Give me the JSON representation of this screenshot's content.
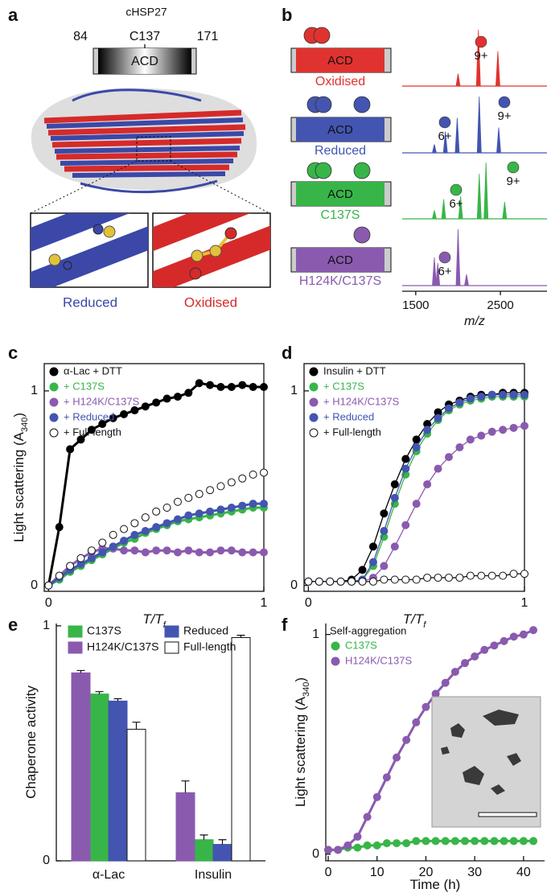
{
  "panel_labels": [
    "a",
    "b",
    "c",
    "d",
    "e",
    "f"
  ],
  "panel_a": {
    "title": "cHSP27",
    "ticks": [
      "84",
      "C137",
      "171"
    ],
    "domain": "ACD",
    "insets": [
      "Reduced",
      "Oxidised"
    ]
  },
  "chart_data": [
    {
      "type": "spectrum",
      "xlabel": "m/z",
      "xlim": [
        1340,
        3050
      ],
      "xticks": [
        1500,
        2500
      ],
      "series": [
        {
          "name": "Oxidised",
          "color": "#e0332f",
          "domain": "ACD",
          "charges": [
            "9+"
          ],
          "x": [
            2000,
            2240,
            2470
          ],
          "values": [
            0.22,
            1.0,
            0.62
          ]
        },
        {
          "name": "Reduced",
          "color": "#4355b0",
          "domain": "ACD",
          "charges": [
            "6+",
            "9+"
          ],
          "x": [
            1720,
            1850,
            1990,
            2250,
            2480
          ],
          "values": [
            0.15,
            0.38,
            0.62,
            1.0,
            0.45
          ]
        },
        {
          "name": "C137S",
          "color": "#38b549",
          "domain": "ACD",
          "charges": [
            "6+",
            "9+"
          ],
          "x": [
            1720,
            1830,
            2030,
            2250,
            2330,
            2550
          ],
          "values": [
            0.15,
            0.35,
            0.4,
            0.8,
            1.0,
            0.3
          ]
        },
        {
          "name": "H124K/C137S",
          "color": "#8a5aaf",
          "domain": "ACD",
          "charges": [
            "6+"
          ],
          "x": [
            1720,
            1760,
            2000,
            2100
          ],
          "values": [
            0.5,
            0.4,
            1.0,
            0.2
          ]
        }
      ]
    },
    {
      "type": "scatter",
      "ylabel": {
        "text": "Light scattering (A",
        "sub": "340",
        "end": ")"
      },
      "xlabel": {
        "text": "T/T",
        "sub": "f"
      },
      "xlim": [
        -0.02,
        1.0
      ],
      "ylim": [
        -0.03,
        1.14
      ],
      "xticks": [
        0,
        1
      ],
      "yticks": [
        0,
        1
      ],
      "x": [
        0,
        0.05,
        0.1,
        0.15,
        0.2,
        0.25,
        0.3,
        0.35,
        0.4,
        0.45,
        0.5,
        0.55,
        0.6,
        0.65,
        0.7,
        0.75,
        0.8,
        0.85,
        0.9,
        0.95,
        1.0
      ],
      "series": [
        {
          "name": "α-Lac + DTT",
          "color": "#000000",
          "values": [
            0,
            0.3,
            0.7,
            0.75,
            0.8,
            0.83,
            0.86,
            0.88,
            0.9,
            0.92,
            0.94,
            0.96,
            0.97,
            0.99,
            1.04,
            1.03,
            1.02,
            1.02,
            1.03,
            1.02,
            1.02
          ]
        },
        {
          "name": "+ C137S",
          "color": "#38b549",
          "values": [
            0,
            0.03,
            0.07,
            0.1,
            0.13,
            0.16,
            0.19,
            0.22,
            0.24,
            0.27,
            0.29,
            0.31,
            0.33,
            0.34,
            0.35,
            0.36,
            0.37,
            0.38,
            0.39,
            0.4,
            0.4
          ]
        },
        {
          "name": "+ H124K/C137S",
          "color": "#8a5aaf",
          "values": [
            0,
            0.05,
            0.1,
            0.14,
            0.17,
            0.19,
            0.19,
            0.18,
            0.18,
            0.17,
            0.18,
            0.18,
            0.17,
            0.18,
            0.17,
            0.17,
            0.18,
            0.18,
            0.17,
            0.17,
            0.17
          ]
        },
        {
          "name": "+ Reduced",
          "color": "#4355b0",
          "values": [
            0,
            0.04,
            0.08,
            0.11,
            0.14,
            0.17,
            0.2,
            0.23,
            0.26,
            0.28,
            0.3,
            0.32,
            0.34,
            0.36,
            0.37,
            0.38,
            0.39,
            0.4,
            0.41,
            0.42,
            0.42
          ]
        },
        {
          "name": "+ Full-length",
          "color": "#ffffff",
          "values": [
            0,
            0.05,
            0.1,
            0.14,
            0.18,
            0.22,
            0.26,
            0.29,
            0.32,
            0.35,
            0.38,
            0.4,
            0.43,
            0.45,
            0.47,
            0.49,
            0.51,
            0.53,
            0.55,
            0.57,
            0.58
          ]
        }
      ]
    },
    {
      "type": "line",
      "xlabel": {
        "text": "T/T",
        "sub": "f"
      },
      "xlim": [
        -0.02,
        1.0
      ],
      "ylim": [
        -0.03,
        1.14
      ],
      "xticks": [
        0,
        1
      ],
      "yticks": [
        0,
        1
      ],
      "x": [
        0,
        0.05,
        0.1,
        0.15,
        0.2,
        0.25,
        0.3,
        0.35,
        0.4,
        0.45,
        0.5,
        0.55,
        0.6,
        0.65,
        0.7,
        0.75,
        0.8,
        0.85,
        0.9,
        0.95,
        1.0
      ],
      "series": [
        {
          "name": "Insulin + DTT",
          "color": "#000000",
          "values": [
            0.02,
            0.02,
            0.02,
            0.02,
            0.03,
            0.08,
            0.2,
            0.37,
            0.52,
            0.65,
            0.75,
            0.83,
            0.89,
            0.93,
            0.95,
            0.97,
            0.98,
            0.98,
            0.99,
            0.99,
            0.99
          ]
        },
        {
          "name": "+ C137S",
          "color": "#38b549",
          "values": [
            0.02,
            0.02,
            0.02,
            0.02,
            0.02,
            0.03,
            0.1,
            0.25,
            0.42,
            0.57,
            0.69,
            0.78,
            0.85,
            0.9,
            0.93,
            0.95,
            0.96,
            0.97,
            0.97,
            0.97,
            0.97
          ]
        },
        {
          "name": "+ H124K/C137S",
          "color": "#8a5aaf",
          "values": [
            0.02,
            0.02,
            0.02,
            0.02,
            0.02,
            0.02,
            0.04,
            0.1,
            0.2,
            0.31,
            0.42,
            0.52,
            0.6,
            0.66,
            0.71,
            0.75,
            0.77,
            0.79,
            0.8,
            0.81,
            0.82
          ]
        },
        {
          "name": "+ Reduced",
          "color": "#4355b0",
          "values": [
            0.02,
            0.02,
            0.02,
            0.02,
            0.02,
            0.03,
            0.12,
            0.28,
            0.45,
            0.6,
            0.71,
            0.8,
            0.86,
            0.91,
            0.94,
            0.96,
            0.97,
            0.98,
            0.98,
            0.98,
            0.98
          ]
        },
        {
          "name": "+ Full-length",
          "color": "#ffffff",
          "values": [
            0.02,
            0.02,
            0.02,
            0.02,
            0.02,
            0.02,
            0.02,
            0.03,
            0.03,
            0.03,
            0.03,
            0.04,
            0.04,
            0.04,
            0.04,
            0.05,
            0.05,
            0.05,
            0.05,
            0.06,
            0.06
          ]
        }
      ]
    },
    {
      "type": "bar",
      "ylabel": "Chaperone activity",
      "categories": [
        "α-Lac",
        "Insulin"
      ],
      "ylim": [
        0,
        1.01
      ],
      "yticks": [
        0,
        1
      ],
      "series": [
        {
          "name": "C137S",
          "color": "#38b549",
          "values": [
            0.71,
            0.09
          ],
          "errors": [
            0.01,
            0.02
          ]
        },
        {
          "name": "H124K/C137S",
          "color": "#8a5aaf",
          "values": [
            0.8,
            0.29
          ],
          "errors": [
            0.01,
            0.05
          ]
        },
        {
          "name": "Reduced",
          "color": "#4355b0",
          "values": [
            0.68,
            0.07
          ],
          "errors": [
            0.01,
            0.02
          ]
        },
        {
          "name": "Full-length",
          "color": "#ffffff",
          "values": [
            0.56,
            0.95
          ],
          "errors": [
            0.03,
            0.01
          ]
        }
      ]
    },
    {
      "type": "scatter",
      "legend_title": "Self-aggregation",
      "ylabel": {
        "text": "Light scattering (A",
        "sub": "340",
        "end": ")"
      },
      "xlabel": "Time (h)",
      "xlim": [
        -0.5,
        44.3
      ],
      "ylim": [
        -0.03,
        1.05
      ],
      "xticks": [
        0,
        10,
        20,
        30,
        40
      ],
      "yticks": [
        0,
        1
      ],
      "x": [
        0,
        2,
        4,
        6,
        8,
        10,
        12,
        14,
        16,
        18,
        20,
        22,
        24,
        26,
        28,
        30,
        32,
        34,
        36,
        38,
        40,
        42
      ],
      "series": [
        {
          "name": "C137S",
          "color": "#38b549",
          "values": [
            0.02,
            0.02,
            0.03,
            0.03,
            0.04,
            0.04,
            0.05,
            0.05,
            0.05,
            0.06,
            0.06,
            0.06,
            0.06,
            0.06,
            0.06,
            0.06,
            0.06,
            0.06,
            0.06,
            0.06,
            0.06,
            0.06
          ]
        },
        {
          "name": "H124K/C137S",
          "color": "#8a5aaf",
          "values": [
            0.02,
            0.02,
            0.04,
            0.08,
            0.17,
            0.26,
            0.35,
            0.44,
            0.52,
            0.6,
            0.67,
            0.73,
            0.78,
            0.83,
            0.87,
            0.9,
            0.93,
            0.95,
            0.97,
            0.99,
            1.0,
            1.02
          ]
        }
      ]
    }
  ]
}
